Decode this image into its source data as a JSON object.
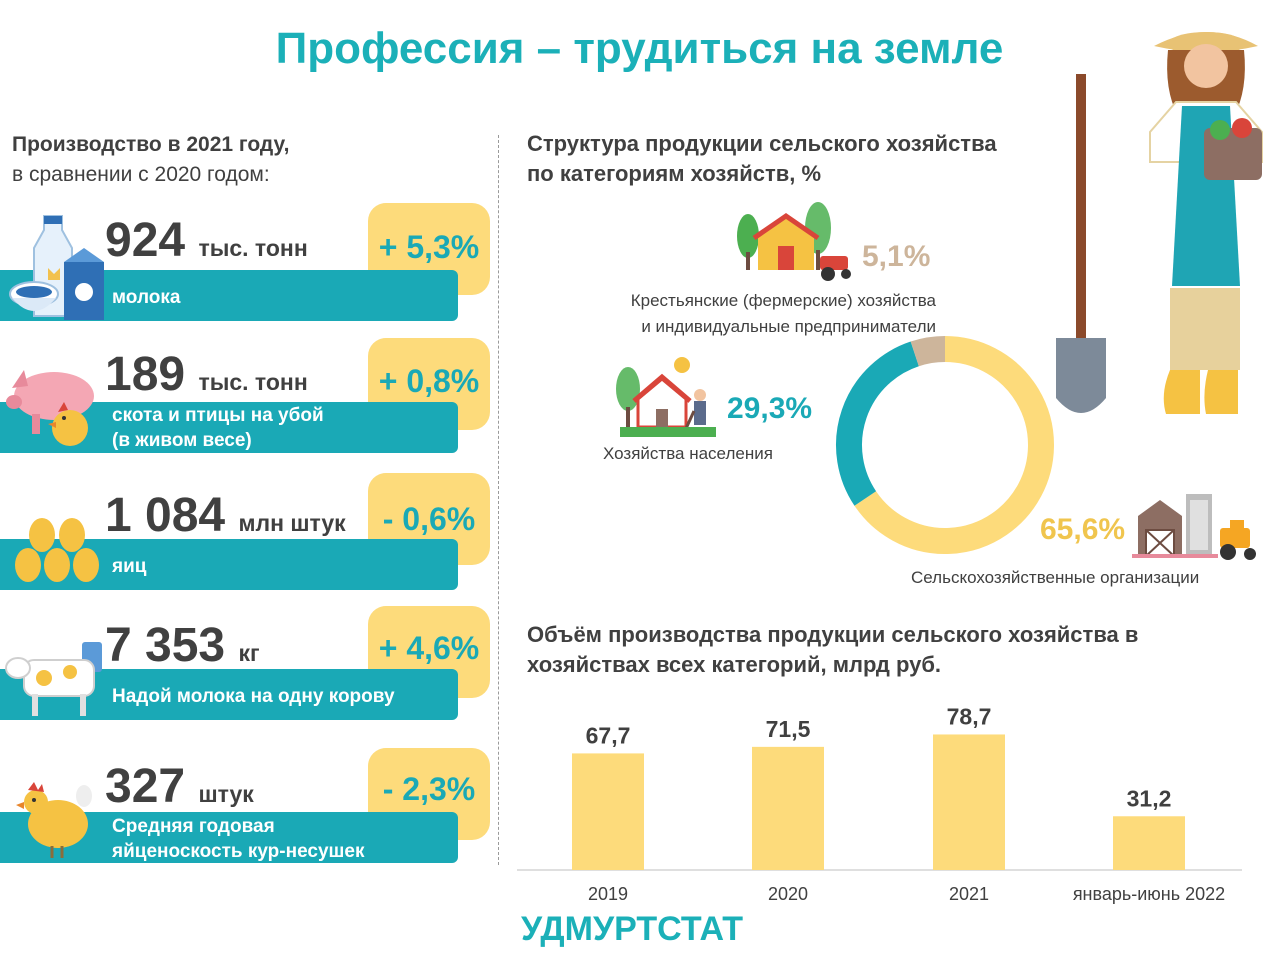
{
  "title": "Профессия – трудиться на земле",
  "left": {
    "heading_bold": "Производство в 2021 году,",
    "heading_normal": "в сравнении с 2020 годом:",
    "items": [
      {
        "value": "924",
        "unit": "тыс. тонн",
        "label": "молока",
        "label2": "",
        "change": "+ 5,3%",
        "icon": "milk-icon"
      },
      {
        "value": "189",
        "unit": "тыс. тонн",
        "label": "скота и птицы на убой",
        "label2": "(в живом весе)",
        "change": "+ 0,8%",
        "icon": "pig-chicken-icon"
      },
      {
        "value": "1 084",
        "unit": "млн штук",
        "label": "яиц",
        "label2": "",
        "change": "- 0,6%",
        "icon": "eggs-icon"
      },
      {
        "value": "7 353",
        "unit": "кг",
        "label": "Надой молока на одну корову",
        "label2": "",
        "change": "+ 4,6%",
        "icon": "cow-icon"
      },
      {
        "value": "327",
        "unit": "штук",
        "label": "Средняя годовая",
        "label2": "яйценоскость кур-несушек",
        "change": "- 2,3%",
        "icon": "hen-icon"
      }
    ]
  },
  "structure": {
    "heading1": "Структура продукции сельского хозяйства",
    "heading2": "по категориям хозяйств, %",
    "farmers_label1": "Крестьянские (фермерские) хозяйства",
    "farmers_label2": "и индивидуальные предприниматели",
    "population_label": "Хозяйства населения",
    "orgs_label": "Сельскохозяйственные организации"
  },
  "chart_data": [
    {
      "type": "pie",
      "title": "Структура продукции сельского хозяйства по категориям хозяйств, %",
      "slices": [
        {
          "label": "Сельскохозяйственные организации",
          "value": 65.6,
          "display": "65,6%",
          "color": "#FDDB7B"
        },
        {
          "label": "Хозяйства населения",
          "value": 29.3,
          "display": "29,3%",
          "color": "#1AA9B6"
        },
        {
          "label": "Крестьянские (фермерские) хозяйства и индивидуальные предприниматели",
          "value": 5.1,
          "display": "5,1%",
          "color": "#CDB59B"
        }
      ]
    },
    {
      "type": "bar",
      "title": "Объём производства продукции сельского хозяйства в хозяйствах всех категорий, млрд руб.",
      "categories": [
        "2019",
        "2020",
        "2021",
        "январь-июнь 2022"
      ],
      "values": [
        67.7,
        71.5,
        78.7,
        31.2
      ],
      "labels": [
        "67,7",
        "71,5",
        "78,7",
        "31,2"
      ],
      "ylim": [
        0,
        90
      ],
      "color": "#FDDB7B",
      "grid": false
    }
  ],
  "volume": {
    "heading1": "Объём производства продукции сельского хозяйства в",
    "heading2": "хозяйствах всех категорий, млрд руб."
  },
  "brand": "УДМУРТСТАТ",
  "colors": {
    "teal": "#1AA9B6",
    "yellow": "#FDDB7B",
    "beige": "#CDB59B",
    "text": "#404040"
  }
}
